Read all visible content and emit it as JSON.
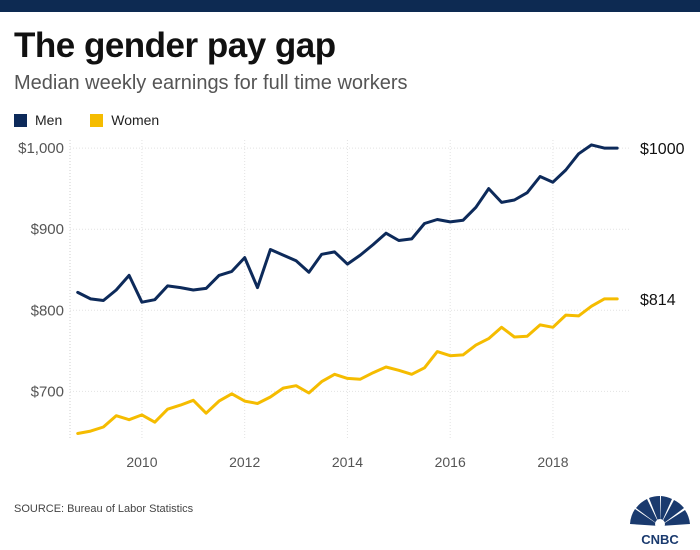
{
  "header": {
    "title": "The gender pay gap",
    "subtitle": "Median weekly earnings for full time workers"
  },
  "legend": [
    {
      "label": "Men",
      "color": "#0d2a5a"
    },
    {
      "label": "Women",
      "color": "#f5bc00"
    }
  ],
  "footer": {
    "source": "SOURCE: Bureau of Labor Statistics",
    "logo_text": "CNBC"
  },
  "chart_data": {
    "type": "line",
    "title": "The gender pay gap",
    "subtitle": "Median weekly earnings for full time workers",
    "xlabel": "",
    "ylabel": "",
    "xlim": [
      2008.6,
      2019.5
    ],
    "ylim": [
      640,
      1010
    ],
    "grid": true,
    "legend_position": "top-left",
    "x_ticks": [
      2010,
      2012,
      2014,
      2016,
      2018
    ],
    "x_tick_labels": [
      "2010",
      "2012",
      "2014",
      "2016",
      "2018"
    ],
    "y_ticks": [
      700,
      800,
      900,
      1000
    ],
    "y_tick_labels": [
      "$700",
      "$800",
      "$900",
      "$1,000"
    ],
    "x": [
      2008.75,
      2009.0,
      2009.25,
      2009.5,
      2009.75,
      2010.0,
      2010.25,
      2010.5,
      2010.75,
      2011.0,
      2011.25,
      2011.5,
      2011.75,
      2012.0,
      2012.25,
      2012.5,
      2012.75,
      2013.0,
      2013.25,
      2013.5,
      2013.75,
      2014.0,
      2014.25,
      2014.5,
      2014.75,
      2015.0,
      2015.25,
      2015.5,
      2015.75,
      2016.0,
      2016.25,
      2016.5,
      2016.75,
      2017.0,
      2017.25,
      2017.5,
      2017.75,
      2018.0,
      2018.25,
      2018.5,
      2018.75,
      2019.0,
      2019.25
    ],
    "series": [
      {
        "name": "Men",
        "color": "#0d2a5a",
        "end_label": "$1000",
        "values": [
          822,
          814,
          812,
          825,
          843,
          810,
          813,
          830,
          828,
          825,
          827,
          843,
          848,
          865,
          828,
          875,
          868,
          861,
          847,
          869,
          872,
          857,
          868,
          881,
          895,
          886,
          888,
          907,
          912,
          909,
          911,
          927,
          950,
          933,
          936,
          945,
          965,
          958,
          973,
          993,
          1004,
          1000,
          1000
        ]
      },
      {
        "name": "Women",
        "color": "#f5bc00",
        "end_label": "$814",
        "values": [
          648,
          651,
          656,
          670,
          665,
          671,
          662,
          678,
          683,
          689,
          673,
          688,
          697,
          688,
          685,
          693,
          704,
          707,
          698,
          712,
          721,
          716,
          715,
          723,
          730,
          726,
          721,
          729,
          749,
          744,
          745,
          757,
          765,
          779,
          767,
          768,
          782,
          779,
          794,
          793,
          805,
          814,
          814
        ]
      }
    ]
  }
}
